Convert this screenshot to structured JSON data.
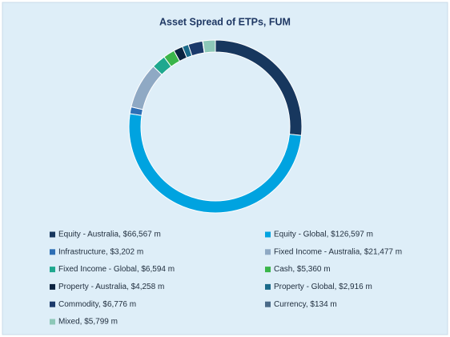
{
  "chart_data": {
    "type": "donut",
    "title": "Asset Spread of ETPs, FUM",
    "categories": [
      "Equity - Australia, $66,567 m",
      "Equity - Global, $126,597 m",
      "Infrastructure, $3,202 m",
      "Fixed Income - Australia, $21,477 m",
      "Fixed Income - Global, $6,594 m",
      "Cash, $5,360 m",
      "Property - Australia, $4,258 m",
      "Property - Global, $2,916 m",
      "Commodity, $6,776 m",
      "Currency, $134 m",
      "Mixed, $5,799 m"
    ],
    "values": [
      66567,
      126597,
      3202,
      21477,
      6594,
      5360,
      4258,
      2916,
      6776,
      134,
      5799
    ],
    "colors": [
      "#17375e",
      "#00a3e0",
      "#2e6fb5",
      "#8fa9c4",
      "#1fa88f",
      "#3ab54a",
      "#0b2340",
      "#1a6a8a",
      "#1b3a6b",
      "#4a6a88",
      "#8dc8b8"
    ],
    "legend": "bottom"
  }
}
